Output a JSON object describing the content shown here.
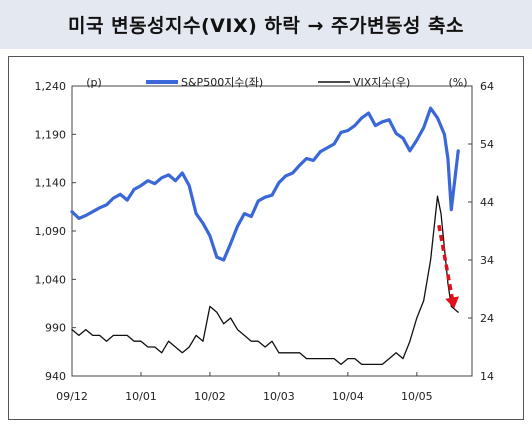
{
  "header": {
    "title": "미국 변동성지수(VIX) 하락 → 주가변동성 축소"
  },
  "chart_data": {
    "type": "line",
    "title": "미국 변동성지수(VIX) 하락 → 주가변동성 축소",
    "left_axis": {
      "unit": "(p)",
      "ylim": [
        940,
        1240
      ],
      "ticks": [
        "1,240",
        "1,190",
        "1,140",
        "1,090",
        "1,040",
        "990",
        "940"
      ]
    },
    "right_axis": {
      "unit": "(%)",
      "ylim": [
        14,
        64
      ],
      "ticks": [
        "64",
        "54",
        "44",
        "34",
        "24",
        "14"
      ]
    },
    "x_ticks": [
      "09/12",
      "10/01",
      "10/02",
      "10/03",
      "10/04",
      "10/05"
    ],
    "legend_position": "top",
    "grid": false,
    "colors": {
      "sp500": "#3a68d8",
      "vix": "#111111",
      "arrow": "#e0101a"
    },
    "series": [
      {
        "name": "S&P500지수(좌)",
        "axis": "left",
        "x": [
          0.0,
          0.1,
          0.2,
          0.3,
          0.4,
          0.5,
          0.6,
          0.7,
          0.8,
          0.9,
          1.0,
          1.1,
          1.2,
          1.3,
          1.4,
          1.5,
          1.6,
          1.7,
          1.8,
          1.9,
          2.0,
          2.1,
          2.2,
          2.3,
          2.4,
          2.5,
          2.6,
          2.7,
          2.8,
          2.9,
          3.0,
          3.1,
          3.2,
          3.3,
          3.4,
          3.5,
          3.6,
          3.7,
          3.8,
          3.9,
          4.0,
          4.1,
          4.2,
          4.3,
          4.4,
          4.5,
          4.6,
          4.7,
          4.8,
          4.9,
          5.0,
          5.1,
          5.2,
          5.3,
          5.4,
          5.45,
          5.5,
          5.6
        ],
        "values": [
          1110,
          1103,
          1106,
          1110,
          1114,
          1117,
          1124,
          1128,
          1122,
          1133,
          1137,
          1142,
          1139,
          1145,
          1148,
          1142,
          1150,
          1137,
          1108,
          1098,
          1085,
          1063,
          1060,
          1077,
          1095,
          1108,
          1105,
          1121,
          1125,
          1127,
          1140,
          1147,
          1150,
          1158,
          1165,
          1163,
          1172,
          1176,
          1180,
          1192,
          1194,
          1199,
          1207,
          1212,
          1199,
          1203,
          1205,
          1191,
          1186,
          1173,
          1184,
          1197,
          1217,
          1207,
          1190,
          1165,
          1112,
          1173
        ]
      },
      {
        "name": "VIX지수(우)",
        "axis": "right",
        "x": [
          0.0,
          0.1,
          0.2,
          0.3,
          0.4,
          0.5,
          0.6,
          0.7,
          0.8,
          0.9,
          1.0,
          1.1,
          1.2,
          1.3,
          1.4,
          1.5,
          1.6,
          1.7,
          1.8,
          1.9,
          2.0,
          2.1,
          2.2,
          2.3,
          2.4,
          2.5,
          2.6,
          2.7,
          2.8,
          2.9,
          3.0,
          3.1,
          3.2,
          3.3,
          3.4,
          3.5,
          3.6,
          3.7,
          3.8,
          3.9,
          4.0,
          4.1,
          4.2,
          4.3,
          4.4,
          4.5,
          4.6,
          4.7,
          4.8,
          4.9,
          5.0,
          5.1,
          5.2,
          5.3,
          5.35,
          5.45,
          5.5,
          5.6
        ],
        "values": [
          22,
          21,
          22,
          21,
          21,
          20,
          21,
          21,
          21,
          20,
          20,
          19,
          19,
          18,
          20,
          19,
          18,
          19,
          21,
          20,
          26,
          25,
          23,
          24,
          22,
          21,
          20,
          20,
          19,
          20,
          18,
          18,
          18,
          18,
          17,
          17,
          17,
          17,
          17,
          16,
          17,
          17,
          16,
          16,
          16,
          16,
          17,
          18,
          17,
          20,
          24,
          27,
          34,
          45,
          42,
          30,
          26,
          25
        ]
      }
    ],
    "annotation": {
      "type": "arrow",
      "direction": "down",
      "color": "#e0101a"
    }
  }
}
